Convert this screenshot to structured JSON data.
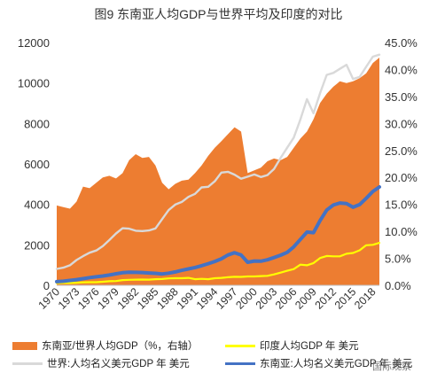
{
  "title": "图9 东南亚人均GDP与世界平均及印度的对比",
  "watermark": "国际观察",
  "chart_data": {
    "type": "line",
    "x": [
      1970,
      1971,
      1972,
      1973,
      1974,
      1975,
      1976,
      1977,
      1978,
      1979,
      1980,
      1981,
      1982,
      1983,
      1984,
      1985,
      1986,
      1987,
      1988,
      1989,
      1990,
      1991,
      1992,
      1993,
      1994,
      1995,
      1996,
      1997,
      1998,
      1999,
      2000,
      2001,
      2002,
      2003,
      2004,
      2005,
      2006,
      2007,
      2008,
      2009,
      2010,
      2011,
      2012,
      2013,
      2014,
      2015,
      2016,
      2017,
      2018,
      2019
    ],
    "x_tick_labels": [
      "1970",
      "1973",
      "1976",
      "1979",
      "1982",
      "1985",
      "1988",
      "1991",
      "1994",
      "1997",
      "2000",
      "2003",
      "2006",
      "2009",
      "2012",
      "2015",
      "2018"
    ],
    "y_left": {
      "range": [
        0,
        12000
      ],
      "ticks": [
        "0",
        "2000",
        "4000",
        "6000",
        "8000",
        "10000",
        "12000"
      ]
    },
    "y_right": {
      "range": [
        0,
        0.45
      ],
      "ticks": [
        "0.0%",
        "5.0%",
        "10.0%",
        "15.0%",
        "20.0%",
        "25.0%",
        "30.0%",
        "35.0%",
        "40.0%",
        "45.0%"
      ]
    },
    "series": [
      {
        "name": "东南亚/世界人均GDP（%，右轴）",
        "type": "area",
        "axis": "right",
        "color": "#ED7D31",
        "values": [
          0.148,
          0.145,
          0.142,
          0.155,
          0.183,
          0.18,
          0.19,
          0.2,
          0.203,
          0.198,
          0.208,
          0.232,
          0.243,
          0.236,
          0.238,
          0.222,
          0.19,
          0.178,
          0.188,
          0.194,
          0.196,
          0.208,
          0.222,
          0.24,
          0.255,
          0.267,
          0.28,
          0.293,
          0.285,
          0.208,
          0.213,
          0.218,
          0.23,
          0.235,
          0.232,
          0.238,
          0.255,
          0.272,
          0.285,
          0.308,
          0.338,
          0.355,
          0.368,
          0.378,
          0.375,
          0.378,
          0.384,
          0.393,
          0.412,
          0.422
        ]
      },
      {
        "name": "印度人均GDP 年 美元",
        "type": "line",
        "axis": "left",
        "color": "#FFFF00",
        "values": [
          110,
          115,
          115,
          125,
          150,
          155,
          155,
          175,
          200,
          210,
          260,
          270,
          280,
          285,
          280,
          300,
          310,
          340,
          350,
          350,
          370,
          300,
          320,
          300,
          350,
          370,
          400,
          420,
          415,
          440,
          440,
          455,
          470,
          540,
          625,
          720,
          800,
          1020,
          990,
          1100,
          1350,
          1450,
          1430,
          1430,
          1560,
          1600,
          1730,
          1980,
          2000,
          2100
        ]
      },
      {
        "name": "世界:人均名义美元GDP 年 美元",
        "type": "line",
        "axis": "left",
        "color": "#D9D9D9",
        "values": [
          810,
          870,
          990,
          1250,
          1440,
          1610,
          1720,
          1940,
          2240,
          2560,
          2820,
          2800,
          2700,
          2680,
          2710,
          2810,
          3270,
          3720,
          3990,
          4120,
          4370,
          4520,
          4840,
          4870,
          5140,
          5570,
          5610,
          5470,
          5270,
          5370,
          5480,
          5350,
          5450,
          5750,
          6300,
          6800,
          7300,
          8200,
          9200,
          8500,
          9500,
          10400,
          10500,
          10700,
          10900,
          10200,
          10300,
          10800,
          11300,
          11400
        ]
      },
      {
        "name": "东南亚:人均名义美元GDP 年 美元",
        "type": "line",
        "axis": "left",
        "color": "#4472C4",
        "values": [
          180,
          200,
          240,
          280,
          330,
          380,
          420,
          460,
          510,
          570,
          620,
          650,
          640,
          630,
          610,
          590,
          560,
          600,
          660,
          740,
          810,
          880,
          970,
          1070,
          1180,
          1310,
          1500,
          1610,
          1500,
          1140,
          1200,
          1190,
          1260,
          1370,
          1490,
          1630,
          1900,
          2270,
          2630,
          2600,
          3200,
          3720,
          3970,
          4070,
          4040,
          3860,
          3990,
          4300,
          4640,
          4860
        ]
      }
    ],
    "legend_placement": "bottom"
  }
}
